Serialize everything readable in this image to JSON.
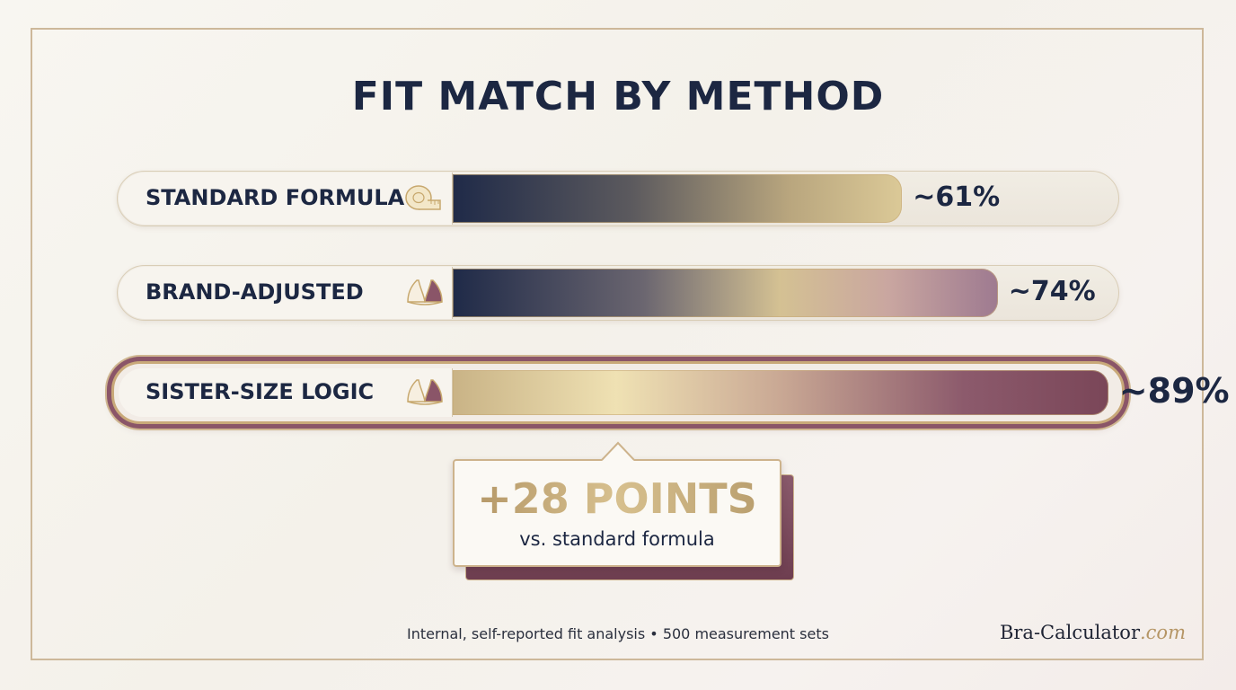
{
  "title": "FIT MATCH BY METHOD",
  "chart_data": {
    "type": "bar",
    "orientation": "horizontal",
    "title": "FIT MATCH BY METHOD",
    "categories": [
      "STANDARD FORMULA",
      "BRAND-ADJUSTED",
      "SISTER-SIZE LOGIC"
    ],
    "values": [
      61,
      74,
      89
    ],
    "value_labels": [
      "~61%",
      "~74%",
      "~89%"
    ],
    "icons": [
      "measuring-tape-icon",
      "bra-icon",
      "bra-icon"
    ],
    "highlighted": "SISTER-SIZE LOGIC",
    "xlim": [
      0,
      100
    ],
    "grid": false,
    "legend": "none",
    "colors": {
      "navy": "#1c2742",
      "gold": "#d9c48e",
      "mauve": "#8a5568",
      "track": "#ece6dc"
    }
  },
  "callout": {
    "headline": "+28 POINTS",
    "subtext": "vs. standard formula"
  },
  "footnote": "Internal, self-reported fit analysis • 500 measurement sets",
  "brand": {
    "name": "Bra-Calculator",
    "domain": ".com"
  }
}
